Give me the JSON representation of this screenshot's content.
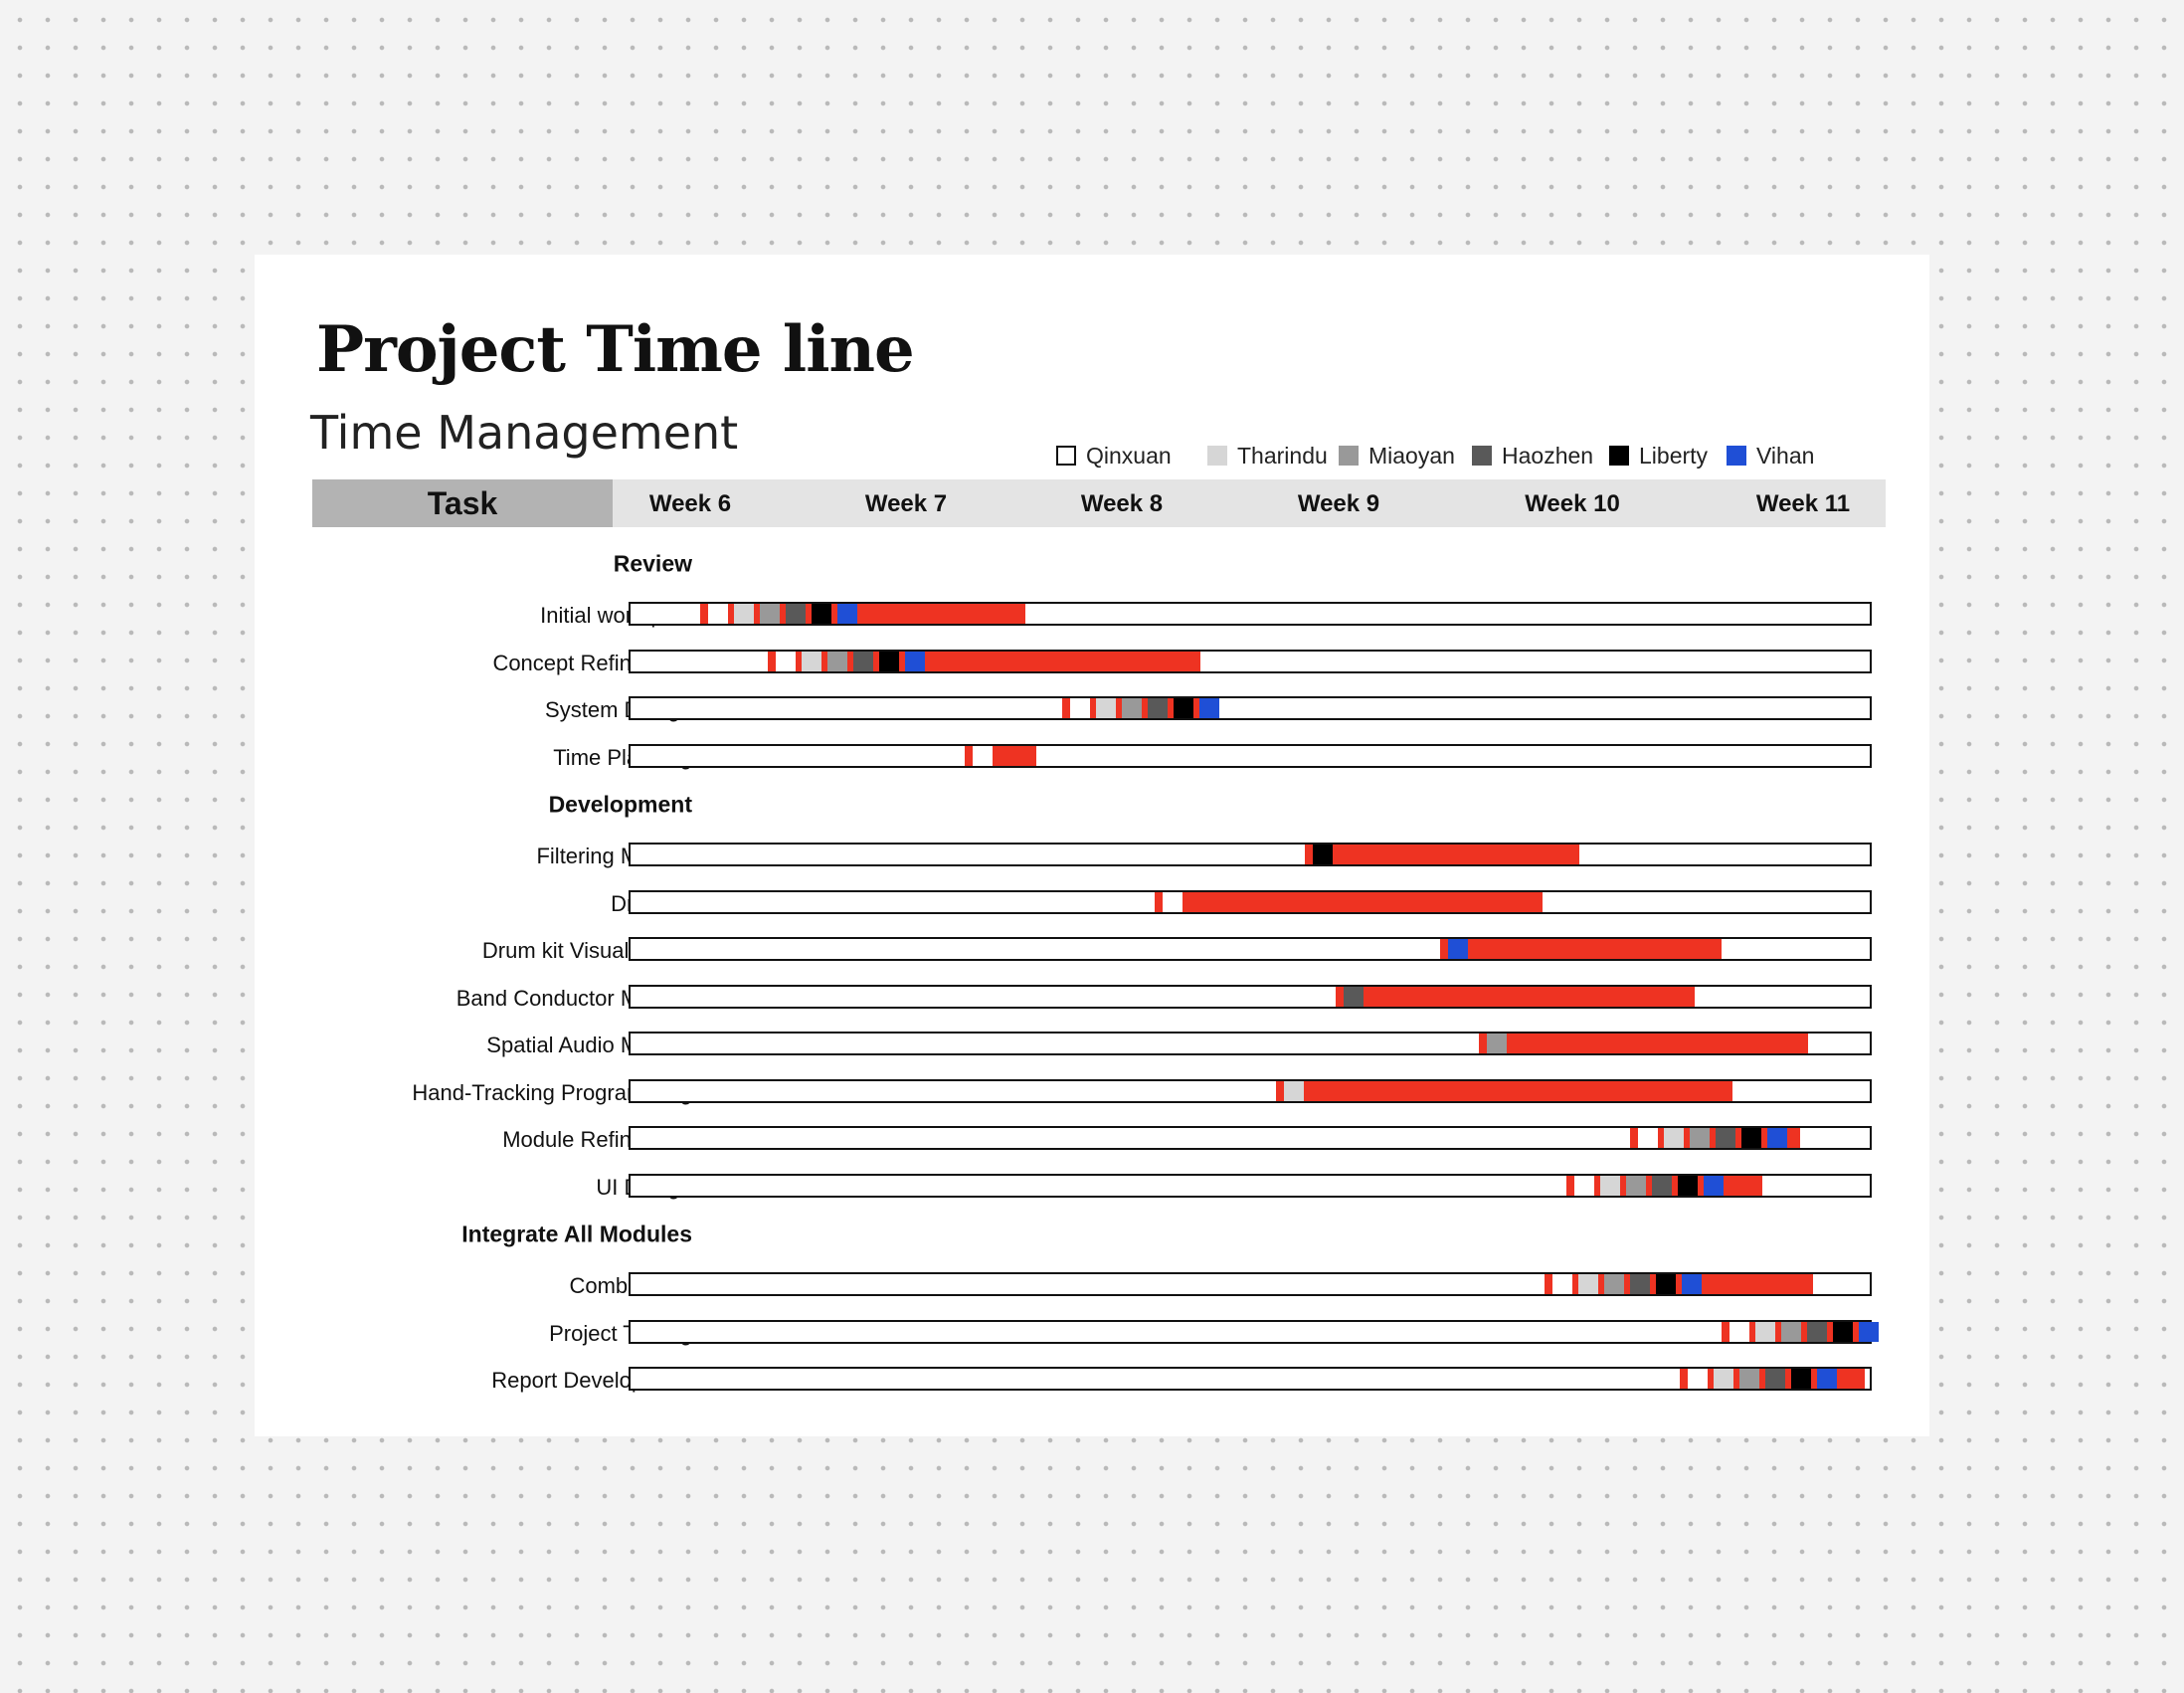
{
  "page": {
    "title": "Project Time line",
    "subtitle": "Time Management"
  },
  "colors": {
    "bar": "#ee3322",
    "track_border": "#111111",
    "header_bg": "#e4e4e4",
    "task_header_bg": "#b3b3b3"
  },
  "legend": [
    {
      "name": "Qinxuan",
      "color": "#ffffff",
      "outlined": true
    },
    {
      "name": "Tharindu",
      "color": "#d6d6d6"
    },
    {
      "name": "Miaoyan",
      "color": "#999999"
    },
    {
      "name": "Haozhen",
      "color": "#595959"
    },
    {
      "name": "Liberty",
      "color": "#000000"
    },
    {
      "name": "Vihan",
      "color": "#1f4fd6"
    }
  ],
  "header": {
    "task_label": "Task",
    "weeks": [
      "Week 6",
      "Week 7",
      "Week 8",
      "Week 9",
      "Week 10",
      "Week 11"
    ]
  },
  "chart_data": {
    "type": "gantt",
    "time_unit": "week",
    "x_range": [
      5.7,
      11.4
    ],
    "sections": [
      {
        "name": "Review",
        "tasks": [
          {
            "name": "Initial work-plan",
            "start": 6.03,
            "end": 7.52,
            "members": [
              "Qinxuan",
              "Tharindu",
              "Miaoyan",
              "Haozhen",
              "Liberty",
              "Vihan"
            ]
          },
          {
            "name": "Concept Refinement",
            "start": 6.34,
            "end": 8.32,
            "members": [
              "Qinxuan",
              "Tharindu",
              "Miaoyan",
              "Haozhen",
              "Liberty",
              "Vihan"
            ]
          },
          {
            "name": "System Design",
            "start": 7.69,
            "end": 8.41,
            "members": [
              "Qinxuan",
              "Tharindu",
              "Miaoyan",
              "Haozhen",
              "Liberty",
              "Vihan"
            ]
          },
          {
            "name": "Time Planning",
            "start": 7.24,
            "end": 7.57,
            "members": [
              "Qinxuan"
            ]
          }
        ]
      },
      {
        "name": "Development",
        "tasks": [
          {
            "name": "Filtering  Module",
            "start": 8.8,
            "end": 10.06,
            "members": [
              "Liberty"
            ]
          },
          {
            "name": "Drum kit",
            "start": 8.11,
            "end": 9.89,
            "members": [
              "Qinxuan"
            ]
          },
          {
            "name": "Drum kit Visualisation",
            "start": 9.42,
            "end": 10.71,
            "members": [
              "Vihan"
            ]
          },
          {
            "name": "Band Conductor Module",
            "start": 8.94,
            "end": 10.59,
            "members": [
              "Haozhen"
            ]
          },
          {
            "name": "Spatial Audio Module",
            "start": 9.6,
            "end": 11.11,
            "members": [
              "Miaoyan"
            ]
          },
          {
            "name": "Hand-Tracking Programming",
            "start": 8.67,
            "end": 10.76,
            "members": [
              "Tharindu"
            ]
          },
          {
            "name": "Module Refinement",
            "start": 10.29,
            "end": 11.07,
            "members": [
              "Qinxuan",
              "Tharindu",
              "Miaoyan",
              "Haozhen",
              "Liberty",
              "Vihan"
            ]
          },
          {
            "name": "UI Design",
            "start": 10.0,
            "end": 10.9,
            "members": [
              "Qinxuan",
              "Tharindu",
              "Miaoyan",
              "Haozhen",
              "Liberty",
              "Vihan"
            ]
          }
        ]
      },
      {
        "name": "Integrate All Modules",
        "tasks": [
          {
            "name": "Combination",
            "start": 9.9,
            "end": 11.13,
            "members": [
              "Qinxuan",
              "Tharindu",
              "Miaoyan",
              "Haozhen",
              "Liberty",
              "Vihan"
            ]
          },
          {
            "name": "Project Testing",
            "start": 10.71,
            "end": 11.4,
            "members": [
              "Qinxuan",
              "Tharindu",
              "Miaoyan",
              "Haozhen",
              "Liberty",
              "Vihan"
            ]
          },
          {
            "name": "Report Development",
            "start": 10.52,
            "end": 11.37,
            "members": [
              "Qinxuan",
              "Tharindu",
              "Miaoyan",
              "Haozhen",
              "Liberty",
              "Vihan"
            ]
          }
        ]
      }
    ]
  }
}
